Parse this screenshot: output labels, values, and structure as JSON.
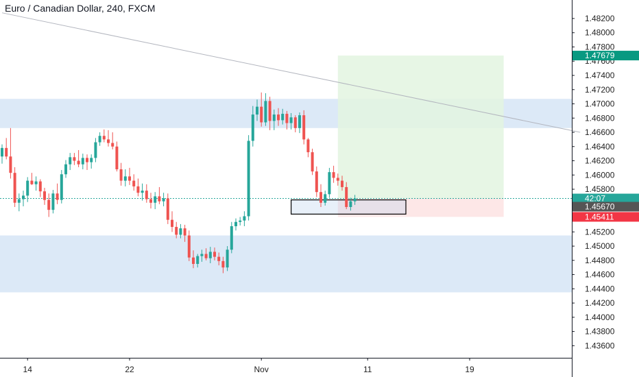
{
  "title": "Euro / Canadian Dollar, 240, FXCM",
  "colors": {
    "up": "#26a69a",
    "down": "#ef5350",
    "zone": "#dce9f7",
    "target": "#e3f4e1",
    "stop": "#fde4e4",
    "target_badge": "#089981",
    "stop_badge": "#f23645",
    "price_badge": "#26a69a",
    "dark_badge": "#555555",
    "axis": "#131722",
    "dashed": "#26a69a",
    "trend": "#b2b5be"
  },
  "badges": {
    "target": "1.47679",
    "countdown": "42:07",
    "current": "1.45670",
    "stop": "1.45411"
  },
  "chart_data": {
    "type": "candlestick",
    "title": "Euro / Canadian Dollar, 240, FXCM",
    "symbol": "Euro / Canadian Dollar",
    "timeframe": "240",
    "source": "FXCM",
    "ylim": [
      1.4343,
      1.4846
    ],
    "y_ticks": [
      "1.48200",
      "1.48000",
      "1.47800",
      "1.47600",
      "1.47400",
      "1.47200",
      "1.47000",
      "1.46800",
      "1.46600",
      "1.46400",
      "1.46200",
      "1.46000",
      "1.45800",
      "1.45600",
      "1.45400",
      "1.45200",
      "1.45000",
      "1.44800",
      "1.44600",
      "1.44400",
      "1.44200",
      "1.44000",
      "1.43800",
      "1.43600"
    ],
    "x_ticks": [
      {
        "label": "14",
        "bar": 6
      },
      {
        "label": "22",
        "bar": 30
      },
      {
        "label": "Nov",
        "bar": 61
      },
      {
        "label": "11",
        "bar": 86
      },
      {
        "label": "19",
        "bar": 110
      }
    ],
    "last_price": 1.4567,
    "target_price": 1.47679,
    "stop_price": 1.45411,
    "zones": [
      {
        "from": 1.4666,
        "to": 1.4707
      },
      {
        "from": 1.4435,
        "to": 1.4515
      }
    ],
    "trendline": {
      "from": [
        0,
        1.4828
      ],
      "to": [
        136,
        1.466
      ]
    },
    "position": {
      "entry_bar": 79,
      "end_bar": 118,
      "entry": 1.4567,
      "target": 1.47679,
      "stop": 1.45411
    },
    "marked_box": {
      "from_bar": 68,
      "to_bar": 95,
      "high": 1.4565,
      "low": 1.4545
    },
    "candles": [
      [
        1.4626,
        1.4643,
        1.4616,
        1.4638
      ],
      [
        1.4638,
        1.4652,
        1.4622,
        1.4626
      ],
      [
        1.4626,
        1.4666,
        1.4595,
        1.4603
      ],
      [
        1.4603,
        1.4611,
        1.4555,
        1.4561
      ],
      [
        1.4561,
        1.4574,
        1.4549,
        1.4566
      ],
      [
        1.4566,
        1.4578,
        1.4556,
        1.4571
      ],
      [
        1.4571,
        1.4597,
        1.4562,
        1.4592
      ],
      [
        1.4592,
        1.4603,
        1.4586,
        1.4587
      ],
      [
        1.4587,
        1.4598,
        1.4578,
        1.4591
      ],
      [
        1.4591,
        1.4594,
        1.4569,
        1.4577
      ],
      [
        1.4577,
        1.4582,
        1.4558,
        1.4565
      ],
      [
        1.4565,
        1.4574,
        1.4541,
        1.4551
      ],
      [
        1.4551,
        1.4579,
        1.4546,
        1.4574
      ],
      [
        1.4574,
        1.4588,
        1.4559,
        1.4565
      ],
      [
        1.4565,
        1.4607,
        1.456,
        1.4601
      ],
      [
        1.4601,
        1.4621,
        1.4596,
        1.4615
      ],
      [
        1.4615,
        1.4631,
        1.4607,
        1.4625
      ],
      [
        1.4625,
        1.4631,
        1.4614,
        1.462
      ],
      [
        1.462,
        1.4635,
        1.4611,
        1.4615
      ],
      [
        1.4615,
        1.463,
        1.4608,
        1.4624
      ],
      [
        1.4624,
        1.4629,
        1.4607,
        1.4618
      ],
      [
        1.4618,
        1.4629,
        1.4609,
        1.4624
      ],
      [
        1.4624,
        1.4652,
        1.4618,
        1.4646
      ],
      [
        1.4646,
        1.466,
        1.4641,
        1.4655
      ],
      [
        1.4655,
        1.4664,
        1.4646,
        1.465
      ],
      [
        1.465,
        1.4663,
        1.464,
        1.4645
      ],
      [
        1.4645,
        1.466,
        1.4636,
        1.464
      ],
      [
        1.464,
        1.4647,
        1.4605,
        1.4608
      ],
      [
        1.4608,
        1.4617,
        1.4585,
        1.4592
      ],
      [
        1.4592,
        1.4608,
        1.4584,
        1.4598
      ],
      [
        1.4598,
        1.461,
        1.4586,
        1.4592
      ],
      [
        1.4592,
        1.4601,
        1.4578,
        1.4584
      ],
      [
        1.4584,
        1.4595,
        1.457,
        1.4575
      ],
      [
        1.4575,
        1.4588,
        1.4564,
        1.4578
      ],
      [
        1.4578,
        1.4587,
        1.4561,
        1.4566
      ],
      [
        1.4566,
        1.4575,
        1.4553,
        1.4561
      ],
      [
        1.4561,
        1.4576,
        1.4552,
        1.457
      ],
      [
        1.457,
        1.4583,
        1.4559,
        1.4563
      ],
      [
        1.4563,
        1.4575,
        1.4556,
        1.4567
      ],
      [
        1.4567,
        1.4574,
        1.4531,
        1.4537
      ],
      [
        1.4537,
        1.4549,
        1.452,
        1.4527
      ],
      [
        1.4527,
        1.4534,
        1.4511,
        1.4516
      ],
      [
        1.4516,
        1.4531,
        1.4511,
        1.4525
      ],
      [
        1.4525,
        1.453,
        1.4506,
        1.4515
      ],
      [
        1.4515,
        1.4522,
        1.4479,
        1.4484
      ],
      [
        1.4484,
        1.4494,
        1.4469,
        1.4475
      ],
      [
        1.4475,
        1.4489,
        1.447,
        1.4486
      ],
      [
        1.4486,
        1.4495,
        1.4478,
        1.4489
      ],
      [
        1.4489,
        1.4497,
        1.448,
        1.4483
      ],
      [
        1.4483,
        1.4499,
        1.4476,
        1.4492
      ],
      [
        1.4492,
        1.4498,
        1.448,
        1.4485
      ],
      [
        1.4485,
        1.4491,
        1.4473,
        1.4479
      ],
      [
        1.4479,
        1.4485,
        1.4462,
        1.447
      ],
      [
        1.447,
        1.45,
        1.4465,
        1.4495
      ],
      [
        1.4495,
        1.4534,
        1.449,
        1.4528
      ],
      [
        1.4528,
        1.4539,
        1.4522,
        1.4534
      ],
      [
        1.4534,
        1.4541,
        1.4529,
        1.4536
      ],
      [
        1.4536,
        1.4549,
        1.4528,
        1.4542
      ],
      [
        1.4542,
        1.4656,
        1.4536,
        1.4648
      ],
      [
        1.4648,
        1.4697,
        1.464,
        1.4685
      ],
      [
        1.4685,
        1.4706,
        1.4676,
        1.4696
      ],
      [
        1.4696,
        1.4716,
        1.4668,
        1.4674
      ],
      [
        1.4674,
        1.4715,
        1.4669,
        1.4704
      ],
      [
        1.4704,
        1.471,
        1.4663,
        1.4676
      ],
      [
        1.4676,
        1.4692,
        1.4663,
        1.4685
      ],
      [
        1.4685,
        1.4694,
        1.4669,
        1.4677
      ],
      [
        1.4677,
        1.4693,
        1.4671,
        1.4686
      ],
      [
        1.4686,
        1.469,
        1.4664,
        1.4673
      ],
      [
        1.4673,
        1.4687,
        1.4664,
        1.4681
      ],
      [
        1.4681,
        1.4684,
        1.466,
        1.4666
      ],
      [
        1.4666,
        1.4688,
        1.4659,
        1.4684
      ],
      [
        1.4684,
        1.4691,
        1.4643,
        1.465
      ],
      [
        1.465,
        1.4652,
        1.4625,
        1.4632
      ],
      [
        1.4632,
        1.4637,
        1.46,
        1.4605
      ],
      [
        1.4605,
        1.4612,
        1.4569,
        1.4576
      ],
      [
        1.4576,
        1.4587,
        1.4555,
        1.4561
      ],
      [
        1.4561,
        1.4578,
        1.4557,
        1.4573
      ],
      [
        1.4573,
        1.461,
        1.4568,
        1.4604
      ],
      [
        1.4604,
        1.4613,
        1.4589,
        1.4596
      ],
      [
        1.4596,
        1.4602,
        1.4585,
        1.4592
      ],
      [
        1.4592,
        1.4599,
        1.4578,
        1.4583
      ],
      [
        1.4583,
        1.459,
        1.4552,
        1.4555
      ],
      [
        1.4555,
        1.4568,
        1.455,
        1.4563
      ],
      [
        1.4563,
        1.4572,
        1.4558,
        1.4567
      ]
    ]
  }
}
